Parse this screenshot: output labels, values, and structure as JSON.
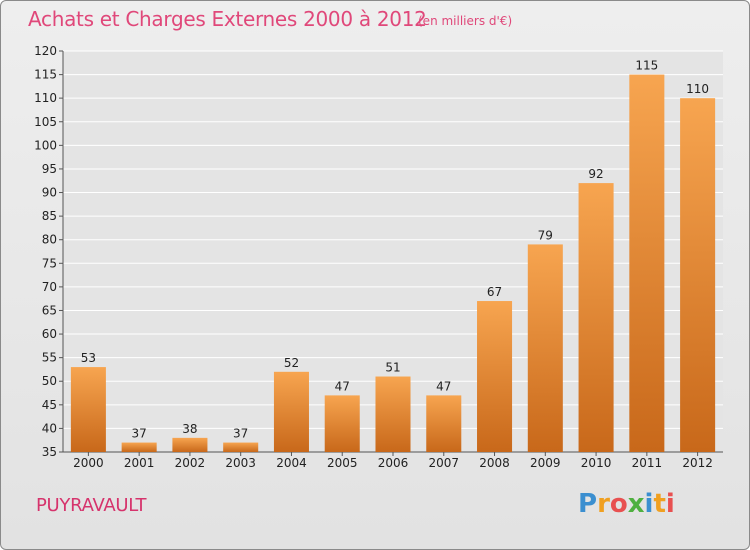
{
  "header": {
    "title": "Achats et Charges Externes 2000 à 2012",
    "unit": "(en milliers d'€)"
  },
  "footer": {
    "commune": "PUYRAVAULT",
    "logo": [
      "P",
      "r",
      "o",
      "x",
      "i",
      "t",
      "i"
    ]
  },
  "colors": {
    "bar_light": "#f7a550",
    "bar_dark": "#c8681a",
    "title": "#e0487a",
    "grid": "#ffffff"
  },
  "chart_data": {
    "type": "bar",
    "title": "Achats et Charges Externes 2000 à 2012",
    "subtitle": "(en milliers d'€)",
    "categories": [
      "2000",
      "2001",
      "2002",
      "2003",
      "2004",
      "2005",
      "2006",
      "2007",
      "2008",
      "2009",
      "2010",
      "2011",
      "2012"
    ],
    "values": [
      53,
      37,
      38,
      37,
      52,
      47,
      51,
      47,
      67,
      79,
      92,
      115,
      110
    ],
    "xlabel": "",
    "ylabel": "",
    "ylim": [
      35,
      120
    ],
    "yticks": [
      35,
      40,
      45,
      50,
      55,
      60,
      65,
      70,
      75,
      80,
      85,
      90,
      95,
      100,
      105,
      110,
      115,
      120
    ],
    "grid": true,
    "data_labels": true
  }
}
